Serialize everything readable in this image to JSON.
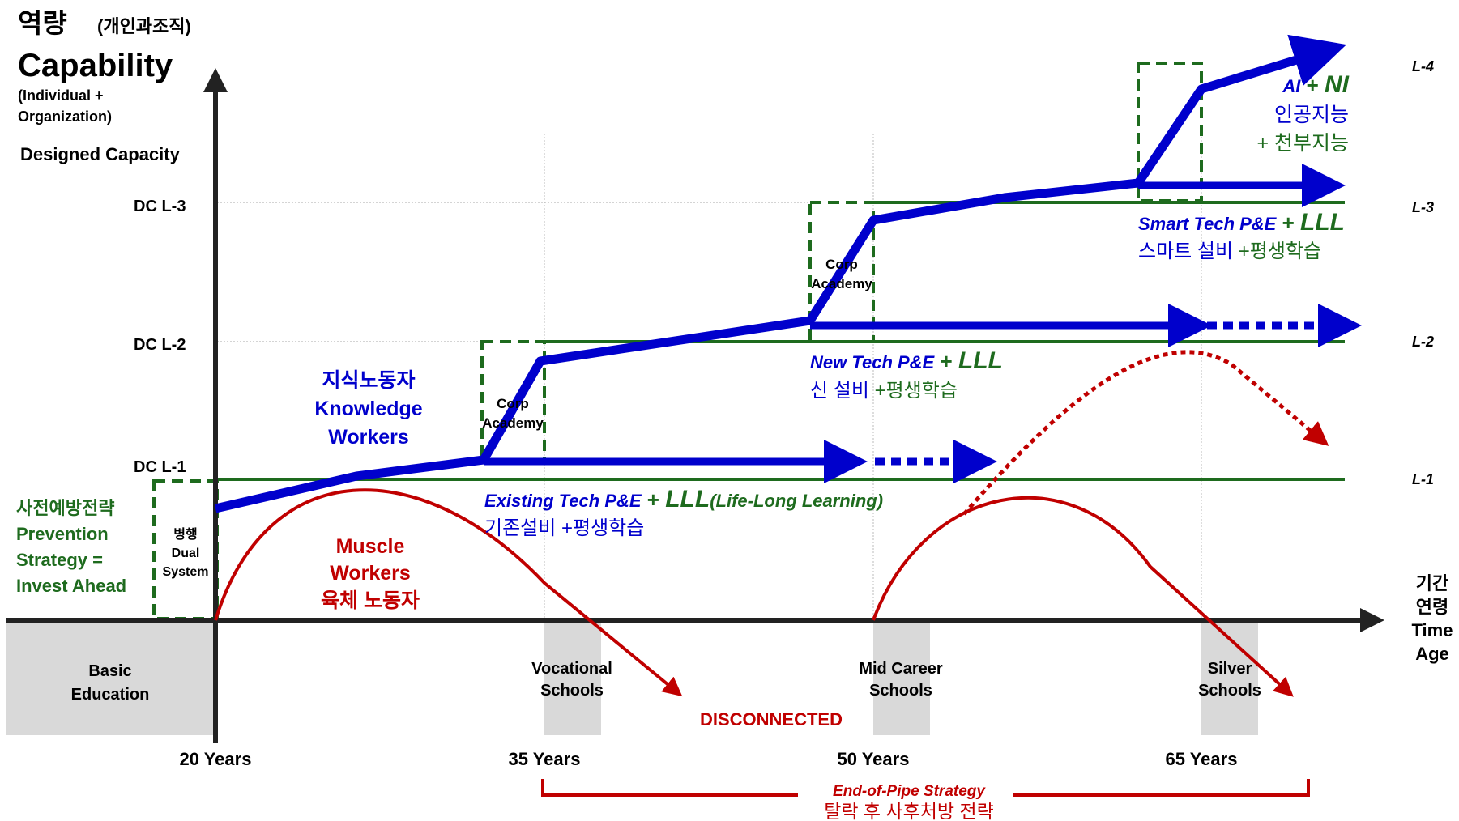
{
  "colors": {
    "knowledge": "#0000cc",
    "muscle": "#c00000",
    "level": "#1e6b1e",
    "axis": "#222222",
    "school_block": "#d9d9d9"
  },
  "title": {
    "ko": "역량",
    "ko_paren": "(개인과조직)",
    "en": "Capability",
    "sub1": "(Individual +",
    "sub2": "Organization)",
    "designed": "Designed Capacity"
  },
  "dc_labels": [
    "DC L-1",
    "DC L-2",
    "DC L-3"
  ],
  "right_levels": [
    "L-1",
    "L-2",
    "L-3",
    "L-4"
  ],
  "time_axis": {
    "ko1": "기간",
    "ko2": "연령",
    "en1": "Time",
    "en2": "Age"
  },
  "years": [
    "20 Years",
    "35 Years",
    "50 Years",
    "65 Years"
  ],
  "schools": {
    "basic1": "Basic",
    "basic2": "Education",
    "voc1": "Vocational",
    "voc2": "Schools",
    "mid1": "Mid Career",
    "mid2": "Schools",
    "silver1": "Silver",
    "silver2": "Schools"
  },
  "prevention": {
    "ko": "사전예방전략",
    "en1": "Prevention",
    "en2": "Strategy =",
    "en3": "Invest Ahead"
  },
  "dual": {
    "ko": "병행",
    "en1": "Dual",
    "en2": "System"
  },
  "knowledge": {
    "ko": "지식노동자",
    "en1": "Knowledge",
    "en2": "Workers"
  },
  "muscle": {
    "en1": "Muscle",
    "en2": "Workers",
    "ko": "육체 노동자"
  },
  "corp": {
    "l1": "Corp",
    "l2": "Academy"
  },
  "existing": {
    "en": "Existing Tech P&E",
    "plus": " + ",
    "lll": "LLL",
    "paren": "(Life-Long Learning)",
    "ko": "기존설비 +평생학습"
  },
  "newtech": {
    "en": "New Tech P&E",
    "plus": " + ",
    "lll": "LLL",
    "ko_blue": "신 설비",
    "ko_green": " +평생학습"
  },
  "smart": {
    "en": "Smart Tech P&E",
    "plus": " + ",
    "lll": "LLL",
    "ko_blue": "스마트 설비",
    "ko_green": " +평생학습"
  },
  "ai": {
    "ai": "AI",
    "plus": " + ",
    "ni": "NI",
    "ko1": "인공지능",
    "ko2": "+  천부지능"
  },
  "disconnected": "DISCONNECTED",
  "end_of_pipe": {
    "en": "End-of-Pipe Strategy",
    "ko": "탈락 후 사후처방 전략"
  }
}
